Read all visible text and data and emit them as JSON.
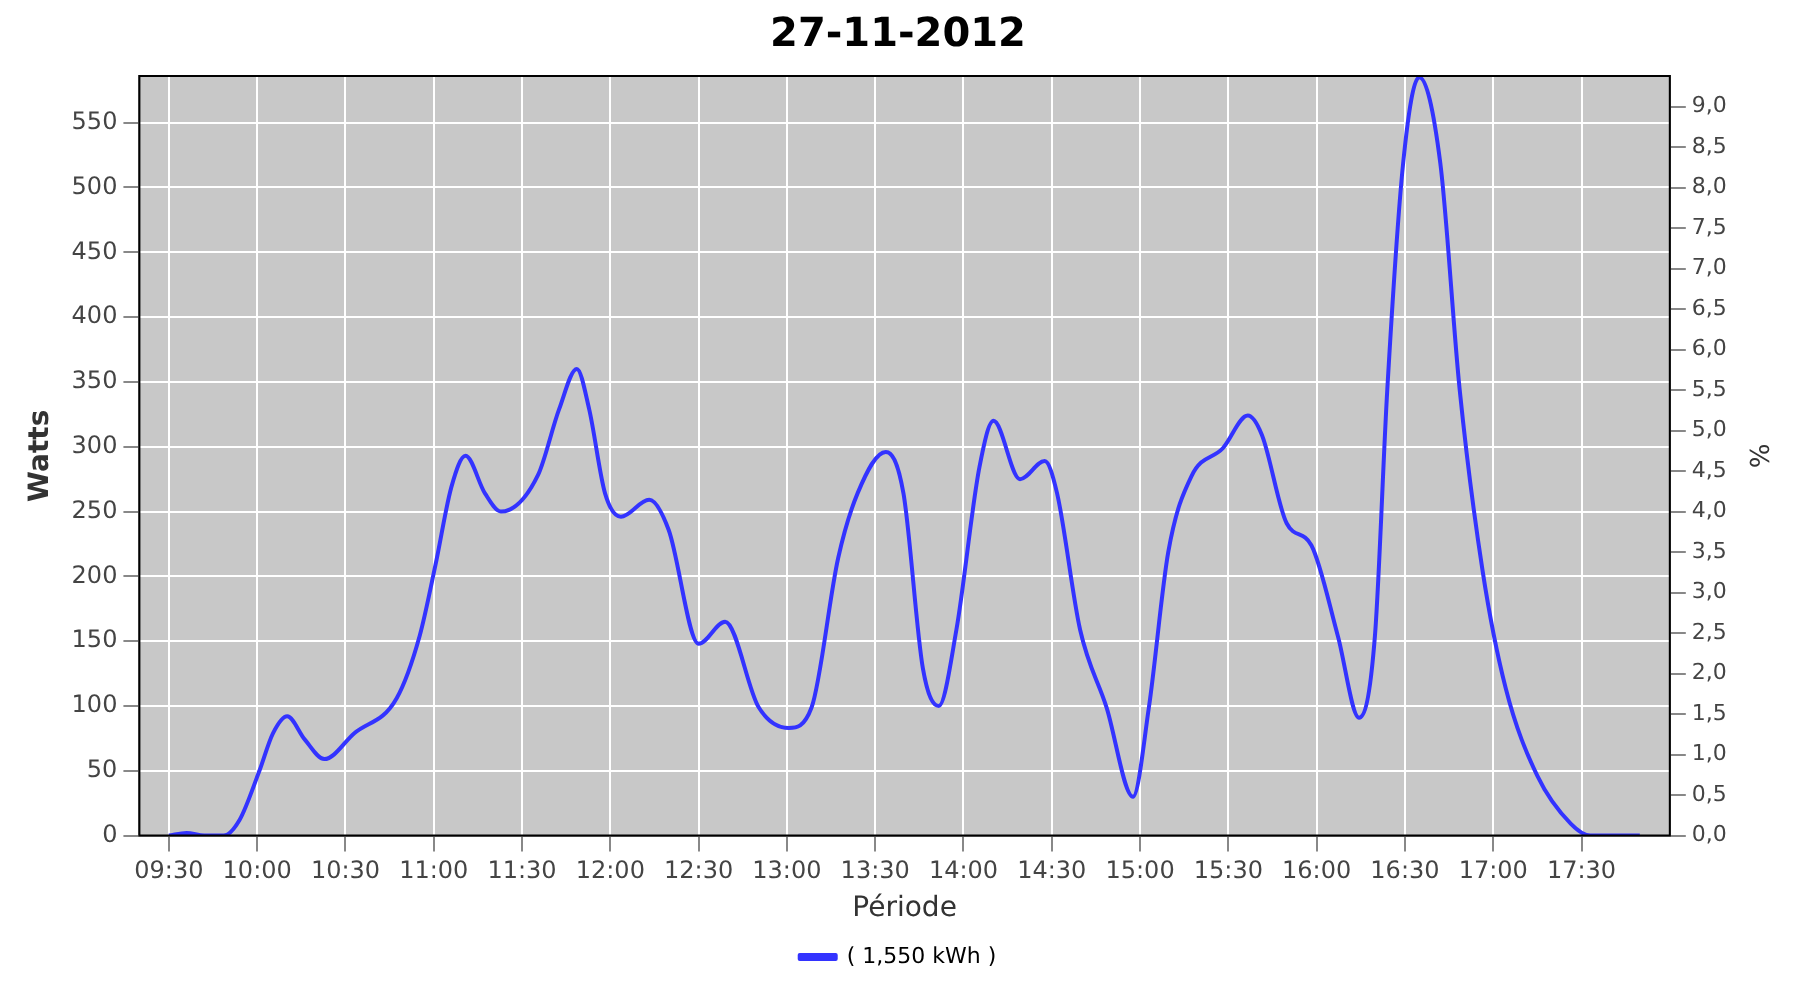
{
  "chart_data": {
    "type": "line",
    "title": "27-11-2012",
    "xlabel": "Période",
    "ylabel": "Watts",
    "y2label": "%",
    "xlim": [
      9.333,
      18
    ],
    "xticks": [
      {
        "value": 9.5,
        "label": "09:30"
      },
      {
        "value": 10,
        "label": "10:00"
      },
      {
        "value": 10.5,
        "label": "10:30"
      },
      {
        "value": 11,
        "label": "11:00"
      },
      {
        "value": 11.5,
        "label": "11:30"
      },
      {
        "value": 12,
        "label": "12:00"
      },
      {
        "value": 12.5,
        "label": "12:30"
      },
      {
        "value": 13,
        "label": "13:00"
      },
      {
        "value": 13.5,
        "label": "13:30"
      },
      {
        "value": 14,
        "label": "14:00"
      },
      {
        "value": 14.5,
        "label": "14:30"
      },
      {
        "value": 15,
        "label": "15:00"
      },
      {
        "value": 15.5,
        "label": "15:30"
      },
      {
        "value": 16,
        "label": "16:00"
      },
      {
        "value": 16.5,
        "label": "16:30"
      },
      {
        "value": 17,
        "label": "17:00"
      },
      {
        "value": 17.5,
        "label": "17:30"
      }
    ],
    "ylim": [
      0,
      586
    ],
    "yticks": [
      0,
      50,
      100,
      150,
      200,
      250,
      300,
      350,
      400,
      450,
      500,
      550
    ],
    "y2lim": [
      0,
      9.38
    ],
    "y2ticks": [
      {
        "value": 0,
        "label": "0,0"
      },
      {
        "value": 0.5,
        "label": "0,5"
      },
      {
        "value": 1,
        "label": "1,0"
      },
      {
        "value": 1.5,
        "label": "1,5"
      },
      {
        "value": 2,
        "label": "2,0"
      },
      {
        "value": 2.5,
        "label": "2,5"
      },
      {
        "value": 3,
        "label": "3,0"
      },
      {
        "value": 3.5,
        "label": "3,5"
      },
      {
        "value": 4,
        "label": "4,0"
      },
      {
        "value": 4.5,
        "label": "4,5"
      },
      {
        "value": 5,
        "label": "5,0"
      },
      {
        "value": 5.5,
        "label": "5,5"
      },
      {
        "value": 6,
        "label": "6,0"
      },
      {
        "value": 6.5,
        "label": "6,5"
      },
      {
        "value": 7,
        "label": "7,0"
      },
      {
        "value": 7.5,
        "label": "7,5"
      },
      {
        "value": 8,
        "label": "8,0"
      },
      {
        "value": 8.5,
        "label": "8,5"
      },
      {
        "value": 9,
        "label": "9,0"
      }
    ],
    "grid": true,
    "legend": "bottom",
    "marker": "none",
    "line_style": "solid",
    "series": [
      {
        "name": "( 1,550 kWh )",
        "color": "#3333ff",
        "x": [
          9.5,
          9.6,
          9.7,
          9.81,
          9.9,
          10.01,
          10.09,
          10.17,
          10.27,
          10.38,
          10.55,
          10.79,
          10.92,
          11.01,
          11.1,
          11.18,
          11.29,
          11.38,
          11.59,
          11.71,
          11.81,
          11.88,
          11.97,
          12.06,
          12.22,
          12.33,
          12.5,
          12.65,
          12.84,
          13.01,
          13.14,
          13.29,
          13.4,
          13.56,
          13.66,
          13.77,
          13.86,
          13.96,
          14.09,
          14.17,
          14.32,
          14.46,
          14.53,
          14.66,
          14.81,
          14.96,
          15.05,
          15.16,
          15.29,
          15.47,
          15.61,
          15.69,
          15.83,
          15.97,
          16.12,
          16.24,
          16.33,
          16.4,
          16.49,
          16.58,
          16.7,
          16.81,
          16.94,
          17.07,
          17.25,
          17.44,
          17.55,
          17.83
        ],
        "values": [
          0,
          2,
          0,
          0,
          12,
          49,
          79,
          92,
          74,
          59,
          79,
          106,
          154,
          209,
          269,
          293,
          264,
          250,
          278,
          329,
          360,
          329,
          264,
          246,
          259,
          236,
          148,
          165,
          99,
          83,
          99,
          214,
          264,
          296,
          264,
          129,
          100,
          159,
          284,
          320,
          275,
          289,
          264,
          159,
          99,
          30,
          99,
          219,
          277,
          299,
          324,
          309,
          241,
          224,
          154,
          91,
          154,
          344,
          519,
          585,
          519,
          344,
          204,
          114,
          46,
          9,
          0,
          0
        ]
      }
    ]
  }
}
